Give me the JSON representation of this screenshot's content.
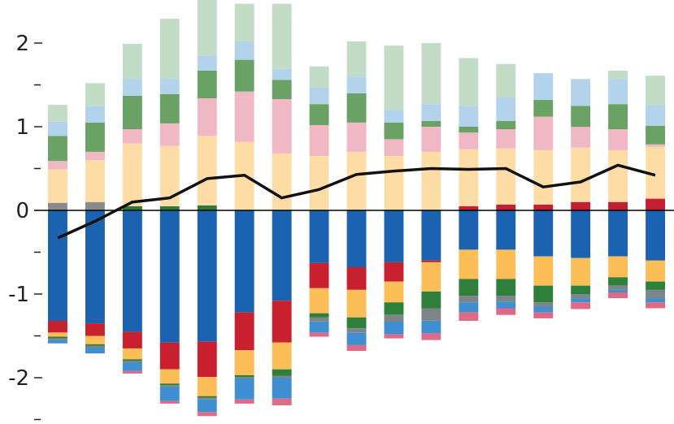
{
  "chart_data": {
    "type": "bar",
    "stacked": true,
    "title": "",
    "xlabel": "",
    "ylabel": "",
    "ylim": [
      -2.5,
      2.5
    ],
    "grid": false,
    "legend": "none",
    "yticks": [
      {
        "value": 2,
        "label": "2"
      },
      {
        "value": 1,
        "label": "1"
      },
      {
        "value": 0,
        "label": "0"
      },
      {
        "value": -1,
        "label": "-1"
      },
      {
        "value": -2,
        "label": "-2"
      }
    ],
    "minor_yticks": [
      1.5,
      0.5,
      -0.5,
      -1.5,
      -2.5
    ],
    "series_colors": {
      "grey": "#8a8a8a",
      "peach": "#fedca6",
      "pink": "#efb8c4",
      "green": "#6aa265",
      "light_blue": "#b3d2ec",
      "pale_green": "#c3dcc5",
      "dark_blue": "#1b63b0",
      "red": "#c9202f",
      "orange": "#fcbe56",
      "dark_green": "#2e7f3b",
      "mid_grey": "#7d8589",
      "mid_blue": "#3f8fd2",
      "rose": "#de6a86",
      "dark_red": "#c21f35",
      "forest_green": "#2a7a3a",
      "line": "#111111"
    },
    "bars": [
      {
        "positive": [
          [
            "grey",
            0.09
          ],
          [
            "peach",
            0.4
          ],
          [
            "pink",
            0.1
          ],
          [
            "green",
            0.3
          ],
          [
            "light_blue",
            0.17
          ],
          [
            "pale_green",
            0.2
          ]
        ],
        "negative": [
          [
            "dark_blue",
            -1.32
          ],
          [
            "red",
            -0.14
          ],
          [
            "orange",
            -0.05
          ],
          [
            "dark_green",
            -0.02
          ],
          [
            "mid_grey",
            -0.02
          ],
          [
            "mid_blue",
            -0.04
          ]
        ]
      },
      {
        "positive": [
          [
            "grey",
            0.1
          ],
          [
            "peach",
            0.5
          ],
          [
            "pink",
            0.1
          ],
          [
            "green",
            0.35
          ],
          [
            "light_blue",
            0.2
          ],
          [
            "pale_green",
            0.27
          ]
        ],
        "negative": [
          [
            "dark_blue",
            -1.35
          ],
          [
            "red",
            -0.15
          ],
          [
            "orange",
            -0.1
          ],
          [
            "dark_green",
            -0.02
          ],
          [
            "mid_grey",
            -0.02
          ],
          [
            "mid_blue",
            -0.07
          ]
        ]
      },
      {
        "positive": [
          [
            "forest_green",
            0.05
          ],
          [
            "peach",
            0.75
          ],
          [
            "pink",
            0.17
          ],
          [
            "green",
            0.4
          ],
          [
            "light_blue",
            0.2
          ],
          [
            "pale_green",
            0.42
          ]
        ],
        "negative": [
          [
            "dark_blue",
            -1.45
          ],
          [
            "red",
            -0.2
          ],
          [
            "orange",
            -0.13
          ],
          [
            "dark_green",
            -0.02
          ],
          [
            "mid_grey",
            -0.02
          ],
          [
            "mid_blue",
            -0.1
          ],
          [
            "rose",
            -0.03
          ]
        ]
      },
      {
        "positive": [
          [
            "forest_green",
            0.05
          ],
          [
            "peach",
            0.72
          ],
          [
            "pink",
            0.27
          ],
          [
            "green",
            0.35
          ],
          [
            "light_blue",
            0.18
          ],
          [
            "pale_green",
            0.72
          ]
        ],
        "negative": [
          [
            "dark_blue",
            -1.58
          ],
          [
            "red",
            -0.32
          ],
          [
            "orange",
            -0.17
          ],
          [
            "dark_green",
            -0.02
          ],
          [
            "mid_grey",
            -0.02
          ],
          [
            "mid_blue",
            -0.17
          ],
          [
            "rose",
            -0.03
          ]
        ]
      },
      {
        "positive": [
          [
            "forest_green",
            0.06
          ],
          [
            "peach",
            0.83
          ],
          [
            "pink",
            0.45
          ],
          [
            "green",
            0.33
          ],
          [
            "light_blue",
            0.18
          ],
          [
            "pale_green",
            0.78
          ]
        ],
        "negative": [
          [
            "dark_blue",
            -1.57
          ],
          [
            "red",
            -0.42
          ],
          [
            "orange",
            -0.23
          ],
          [
            "dark_green",
            -0.02
          ],
          [
            "mid_grey",
            -0.02
          ],
          [
            "mid_blue",
            -0.15
          ],
          [
            "rose",
            -0.05
          ]
        ]
      },
      {
        "positive": [
          [
            "peach",
            0.82
          ],
          [
            "pink",
            0.6
          ],
          [
            "green",
            0.38
          ],
          [
            "light_blue",
            0.22
          ],
          [
            "pale_green",
            0.45
          ]
        ],
        "negative": [
          [
            "dark_blue",
            -1.22
          ],
          [
            "red",
            -0.45
          ],
          [
            "orange",
            -0.3
          ],
          [
            "dark_green",
            -0.02
          ],
          [
            "mid_grey",
            -0.02
          ],
          [
            "mid_blue",
            -0.25
          ],
          [
            "rose",
            -0.05
          ]
        ]
      },
      {
        "positive": [
          [
            "peach",
            0.68
          ],
          [
            "pink",
            0.65
          ],
          [
            "green",
            0.23
          ],
          [
            "light_blue",
            0.13
          ],
          [
            "pale_green",
            0.78
          ]
        ],
        "negative": [
          [
            "dark_blue",
            -1.08
          ],
          [
            "red",
            -0.5
          ],
          [
            "orange",
            -0.32
          ],
          [
            "dark_green",
            -0.08
          ],
          [
            "mid_grey",
            -0.02
          ],
          [
            "mid_blue",
            -0.25
          ],
          [
            "rose",
            -0.08
          ]
        ]
      },
      {
        "positive": [
          [
            "peach",
            0.65
          ],
          [
            "pink",
            0.37
          ],
          [
            "green",
            0.25
          ],
          [
            "light_blue",
            0.2
          ],
          [
            "pale_green",
            0.25
          ]
        ],
        "negative": [
          [
            "dark_blue",
            -0.63
          ],
          [
            "red",
            -0.3
          ],
          [
            "orange",
            -0.3
          ],
          [
            "dark_green",
            -0.05
          ],
          [
            "mid_grey",
            -0.05
          ],
          [
            "mid_blue",
            -0.13
          ],
          [
            "rose",
            -0.05
          ]
        ]
      },
      {
        "positive": [
          [
            "peach",
            0.7
          ],
          [
            "pink",
            0.35
          ],
          [
            "green",
            0.35
          ],
          [
            "light_blue",
            0.2
          ],
          [
            "pale_green",
            0.42
          ]
        ],
        "negative": [
          [
            "dark_blue",
            -0.68
          ],
          [
            "red",
            -0.27
          ],
          [
            "orange",
            -0.33
          ],
          [
            "dark_green",
            -0.13
          ],
          [
            "mid_grey",
            -0.05
          ],
          [
            "mid_blue",
            -0.15
          ],
          [
            "rose",
            -0.07
          ]
        ]
      },
      {
        "positive": [
          [
            "peach",
            0.65
          ],
          [
            "pink",
            0.2
          ],
          [
            "green",
            0.2
          ],
          [
            "light_blue",
            0.15
          ],
          [
            "pale_green",
            0.77
          ]
        ],
        "negative": [
          [
            "dark_blue",
            -0.62
          ],
          [
            "red",
            -0.23
          ],
          [
            "orange",
            -0.25
          ],
          [
            "dark_green",
            -0.15
          ],
          [
            "mid_grey",
            -0.08
          ],
          [
            "mid_blue",
            -0.15
          ],
          [
            "rose",
            -0.05
          ]
        ]
      },
      {
        "positive": [
          [
            "peach",
            0.7
          ],
          [
            "pink",
            0.3
          ],
          [
            "green",
            0.07
          ],
          [
            "light_blue",
            0.2
          ],
          [
            "pale_green",
            0.73
          ]
        ],
        "negative": [
          [
            "dark_blue",
            -0.6
          ],
          [
            "red",
            -0.02
          ],
          [
            "orange",
            -0.35
          ],
          [
            "dark_green",
            -0.2
          ],
          [
            "mid_grey",
            -0.15
          ],
          [
            "mid_blue",
            -0.15
          ],
          [
            "rose",
            -0.08
          ]
        ]
      },
      {
        "positive": [
          [
            "dark_red",
            0.05
          ],
          [
            "peach",
            0.68
          ],
          [
            "pink",
            0.2
          ],
          [
            "green",
            0.07
          ],
          [
            "light_blue",
            0.25
          ],
          [
            "pale_green",
            0.57
          ]
        ],
        "negative": [
          [
            "dark_blue",
            -0.47
          ],
          [
            "orange",
            -0.35
          ],
          [
            "dark_green",
            -0.2
          ],
          [
            "mid_grey",
            -0.08
          ],
          [
            "mid_blue",
            -0.12
          ],
          [
            "rose",
            -0.1
          ]
        ]
      },
      {
        "positive": [
          [
            "dark_red",
            0.07
          ],
          [
            "peach",
            0.67
          ],
          [
            "pink",
            0.23
          ],
          [
            "green",
            0.1
          ],
          [
            "light_blue",
            0.28
          ],
          [
            "pale_green",
            0.4
          ]
        ],
        "negative": [
          [
            "dark_blue",
            -0.47
          ],
          [
            "orange",
            -0.35
          ],
          [
            "dark_green",
            -0.2
          ],
          [
            "mid_grey",
            -0.07
          ],
          [
            "mid_blue",
            -0.08
          ],
          [
            "rose",
            -0.08
          ]
        ]
      },
      {
        "positive": [
          [
            "dark_red",
            0.07
          ],
          [
            "peach",
            0.65
          ],
          [
            "pink",
            0.4
          ],
          [
            "green",
            0.2
          ],
          [
            "light_blue",
            0.32
          ]
        ],
        "negative": [
          [
            "dark_blue",
            -0.55
          ],
          [
            "orange",
            -0.35
          ],
          [
            "dark_green",
            -0.2
          ],
          [
            "mid_grey",
            -0.05
          ],
          [
            "mid_blue",
            -0.07
          ],
          [
            "rose",
            -0.07
          ]
        ]
      },
      {
        "positive": [
          [
            "dark_red",
            0.1
          ],
          [
            "peach",
            0.65
          ],
          [
            "pink",
            0.25
          ],
          [
            "green",
            0.25
          ],
          [
            "light_blue",
            0.32
          ]
        ],
        "negative": [
          [
            "dark_blue",
            -0.57
          ],
          [
            "orange",
            -0.33
          ],
          [
            "dark_green",
            -0.1
          ],
          [
            "mid_grey",
            -0.05
          ],
          [
            "mid_blue",
            -0.05
          ],
          [
            "rose",
            -0.08
          ]
        ]
      },
      {
        "positive": [
          [
            "dark_red",
            0.1
          ],
          [
            "peach",
            0.62
          ],
          [
            "pink",
            0.25
          ],
          [
            "green",
            0.3
          ],
          [
            "light_blue",
            0.3
          ],
          [
            "pale_green",
            0.1
          ]
        ],
        "negative": [
          [
            "dark_blue",
            -0.55
          ],
          [
            "orange",
            -0.25
          ],
          [
            "dark_green",
            -0.1
          ],
          [
            "mid_grey",
            -0.05
          ],
          [
            "mid_blue",
            -0.03
          ],
          [
            "rose",
            -0.07
          ]
        ]
      },
      {
        "positive": [
          [
            "dark_red",
            0.14
          ],
          [
            "peach",
            0.62
          ],
          [
            "pink",
            0.03
          ],
          [
            "green",
            0.22
          ],
          [
            "light_blue",
            0.25
          ],
          [
            "pale_green",
            0.35
          ]
        ],
        "negative": [
          [
            "dark_blue",
            -0.6
          ],
          [
            "orange",
            -0.25
          ],
          [
            "dark_green",
            -0.1
          ],
          [
            "mid_grey",
            -0.1
          ],
          [
            "mid_blue",
            -0.05
          ],
          [
            "rose",
            -0.07
          ]
        ]
      }
    ],
    "line": {
      "color": "#111111",
      "values": [
        -0.33,
        -0.13,
        0.1,
        0.15,
        0.38,
        0.42,
        0.15,
        0.25,
        0.43,
        0.47,
        0.5,
        0.49,
        0.5,
        0.28,
        0.34,
        0.54,
        0.42
      ]
    }
  }
}
